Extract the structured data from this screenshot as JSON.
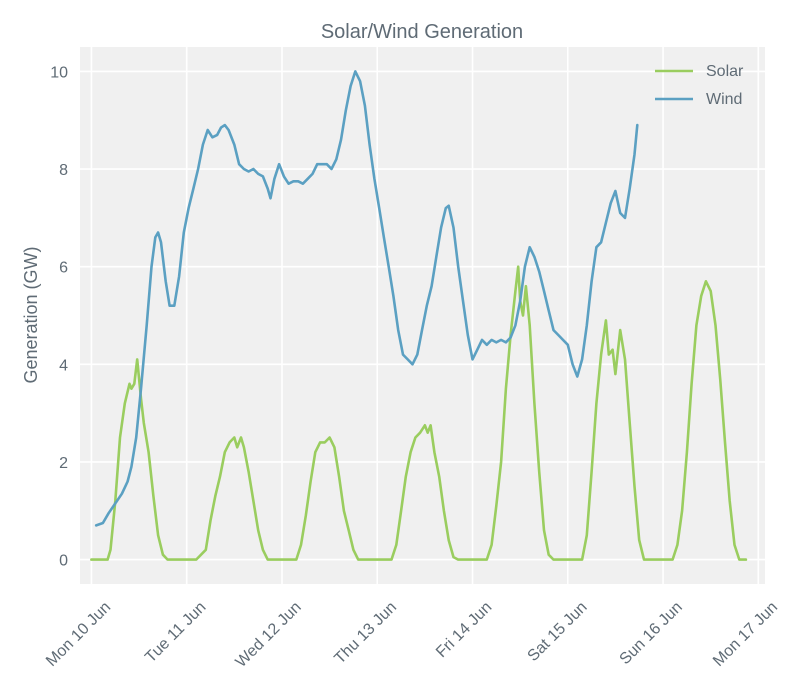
{
  "chart_data": {
    "type": "line",
    "title": "Solar/Wind Generation",
    "xlabel": "",
    "ylabel": "Generation (GW)",
    "ylim": [
      -0.5,
      10.5
    ],
    "yticks": [
      0,
      2,
      4,
      6,
      8,
      10
    ],
    "xlim": [
      -0.12,
      7.07
    ],
    "xticks": [
      {
        "label": "Mon 10 Jun",
        "x": 0
      },
      {
        "label": "Tue 11 Jun",
        "x": 1
      },
      {
        "label": "Wed 12 Jun",
        "x": 2
      },
      {
        "label": "Thu 13 Jun",
        "x": 3
      },
      {
        "label": "Fri 14 Jun",
        "x": 4
      },
      {
        "label": "Sat 15 Jun",
        "x": 5
      },
      {
        "label": "Sun 16 Jun",
        "x": 6
      },
      {
        "label": "Mon 17 Jun",
        "x": 7
      }
    ],
    "legend": "top-right",
    "grid": true,
    "series": [
      {
        "name": "Solar",
        "color": "#9acd5f",
        "points": [
          [
            0,
            0
          ],
          [
            0.08,
            0
          ],
          [
            0.17,
            0
          ],
          [
            0.2,
            0.2
          ],
          [
            0.25,
            1.2
          ],
          [
            0.3,
            2.5
          ],
          [
            0.35,
            3.2
          ],
          [
            0.4,
            3.6
          ],
          [
            0.42,
            3.5
          ],
          [
            0.45,
            3.6
          ],
          [
            0.48,
            4.1
          ],
          [
            0.52,
            3.3
          ],
          [
            0.55,
            2.8
          ],
          [
            0.6,
            2.2
          ],
          [
            0.65,
            1.3
          ],
          [
            0.7,
            0.5
          ],
          [
            0.75,
            0.1
          ],
          [
            0.8,
            0
          ],
          [
            0.9,
            0
          ],
          [
            1.0,
            0
          ],
          [
            1.1,
            0
          ],
          [
            1.2,
            0.2
          ],
          [
            1.25,
            0.8
          ],
          [
            1.3,
            1.3
          ],
          [
            1.35,
            1.7
          ],
          [
            1.4,
            2.2
          ],
          [
            1.45,
            2.4
          ],
          [
            1.5,
            2.5
          ],
          [
            1.53,
            2.3
          ],
          [
            1.57,
            2.5
          ],
          [
            1.6,
            2.3
          ],
          [
            1.65,
            1.8
          ],
          [
            1.7,
            1.2
          ],
          [
            1.75,
            0.6
          ],
          [
            1.8,
            0.2
          ],
          [
            1.85,
            0
          ],
          [
            2.0,
            0
          ],
          [
            2.15,
            0
          ],
          [
            2.2,
            0.3
          ],
          [
            2.25,
            0.9
          ],
          [
            2.3,
            1.6
          ],
          [
            2.35,
            2.2
          ],
          [
            2.4,
            2.4
          ],
          [
            2.45,
            2.4
          ],
          [
            2.5,
            2.5
          ],
          [
            2.55,
            2.3
          ],
          [
            2.6,
            1.7
          ],
          [
            2.65,
            1.0
          ],
          [
            2.7,
            0.6
          ],
          [
            2.75,
            0.2
          ],
          [
            2.8,
            0
          ],
          [
            3.0,
            0
          ],
          [
            3.15,
            0
          ],
          [
            3.2,
            0.3
          ],
          [
            3.25,
            1.0
          ],
          [
            3.3,
            1.7
          ],
          [
            3.35,
            2.2
          ],
          [
            3.4,
            2.5
          ],
          [
            3.45,
            2.6
          ],
          [
            3.5,
            2.75
          ],
          [
            3.53,
            2.6
          ],
          [
            3.56,
            2.75
          ],
          [
            3.6,
            2.2
          ],
          [
            3.65,
            1.7
          ],
          [
            3.7,
            1.0
          ],
          [
            3.75,
            0.4
          ],
          [
            3.8,
            0.05
          ],
          [
            3.85,
            0
          ],
          [
            4.0,
            0
          ],
          [
            4.15,
            0
          ],
          [
            4.2,
            0.3
          ],
          [
            4.25,
            1.1
          ],
          [
            4.3,
            2.0
          ],
          [
            4.35,
            3.5
          ],
          [
            4.4,
            4.6
          ],
          [
            4.45,
            5.5
          ],
          [
            4.48,
            6.0
          ],
          [
            4.5,
            5.3
          ],
          [
            4.53,
            5.0
          ],
          [
            4.56,
            5.6
          ],
          [
            4.6,
            4.8
          ],
          [
            4.65,
            3.2
          ],
          [
            4.7,
            1.8
          ],
          [
            4.75,
            0.6
          ],
          [
            4.8,
            0.1
          ],
          [
            4.85,
            0
          ],
          [
            5.0,
            0
          ],
          [
            5.15,
            0
          ],
          [
            5.2,
            0.5
          ],
          [
            5.25,
            1.8
          ],
          [
            5.3,
            3.2
          ],
          [
            5.35,
            4.2
          ],
          [
            5.4,
            4.9
          ],
          [
            5.43,
            4.2
          ],
          [
            5.47,
            4.3
          ],
          [
            5.5,
            3.8
          ],
          [
            5.55,
            4.7
          ],
          [
            5.6,
            4.1
          ],
          [
            5.65,
            2.8
          ],
          [
            5.7,
            1.5
          ],
          [
            5.75,
            0.4
          ],
          [
            5.8,
            0
          ],
          [
            6.0,
            0
          ],
          [
            6.1,
            0
          ],
          [
            6.15,
            0.3
          ],
          [
            6.2,
            1.0
          ],
          [
            6.25,
            2.2
          ],
          [
            6.3,
            3.6
          ],
          [
            6.35,
            4.8
          ],
          [
            6.4,
            5.4
          ],
          [
            6.45,
            5.7
          ],
          [
            6.5,
            5.5
          ],
          [
            6.55,
            4.8
          ],
          [
            6.6,
            3.7
          ],
          [
            6.65,
            2.4
          ],
          [
            6.7,
            1.2
          ],
          [
            6.75,
            0.3
          ],
          [
            6.8,
            0
          ],
          [
            6.87,
            0
          ]
        ]
      },
      {
        "name": "Wind",
        "color": "#5ba0c2",
        "points": [
          [
            0.05,
            0.7
          ],
          [
            0.12,
            0.75
          ],
          [
            0.18,
            0.95
          ],
          [
            0.25,
            1.15
          ],
          [
            0.32,
            1.35
          ],
          [
            0.38,
            1.6
          ],
          [
            0.42,
            1.9
          ],
          [
            0.47,
            2.5
          ],
          [
            0.52,
            3.5
          ],
          [
            0.58,
            4.8
          ],
          [
            0.63,
            6.0
          ],
          [
            0.67,
            6.6
          ],
          [
            0.7,
            6.7
          ],
          [
            0.73,
            6.5
          ],
          [
            0.78,
            5.7
          ],
          [
            0.82,
            5.2
          ],
          [
            0.87,
            5.2
          ],
          [
            0.92,
            5.8
          ],
          [
            0.97,
            6.7
          ],
          [
            1.02,
            7.2
          ],
          [
            1.07,
            7.6
          ],
          [
            1.12,
            8.0
          ],
          [
            1.17,
            8.5
          ],
          [
            1.22,
            8.8
          ],
          [
            1.27,
            8.65
          ],
          [
            1.32,
            8.7
          ],
          [
            1.36,
            8.85
          ],
          [
            1.4,
            8.9
          ],
          [
            1.44,
            8.8
          ],
          [
            1.5,
            8.5
          ],
          [
            1.55,
            8.1
          ],
          [
            1.6,
            8.0
          ],
          [
            1.65,
            7.95
          ],
          [
            1.7,
            8.0
          ],
          [
            1.75,
            7.9
          ],
          [
            1.8,
            7.85
          ],
          [
            1.85,
            7.6
          ],
          [
            1.88,
            7.4
          ],
          [
            1.92,
            7.8
          ],
          [
            1.97,
            8.1
          ],
          [
            2.02,
            7.85
          ],
          [
            2.07,
            7.7
          ],
          [
            2.12,
            7.75
          ],
          [
            2.17,
            7.75
          ],
          [
            2.22,
            7.7
          ],
          [
            2.27,
            7.8
          ],
          [
            2.32,
            7.9
          ],
          [
            2.37,
            8.1
          ],
          [
            2.42,
            8.1
          ],
          [
            2.47,
            8.1
          ],
          [
            2.52,
            8.0
          ],
          [
            2.57,
            8.2
          ],
          [
            2.62,
            8.6
          ],
          [
            2.67,
            9.2
          ],
          [
            2.72,
            9.7
          ],
          [
            2.77,
            10.0
          ],
          [
            2.82,
            9.8
          ],
          [
            2.87,
            9.3
          ],
          [
            2.92,
            8.5
          ],
          [
            2.97,
            7.8
          ],
          [
            3.02,
            7.2
          ],
          [
            3.07,
            6.6
          ],
          [
            3.12,
            6.0
          ],
          [
            3.17,
            5.4
          ],
          [
            3.22,
            4.7
          ],
          [
            3.27,
            4.2
          ],
          [
            3.32,
            4.1
          ],
          [
            3.37,
            4.0
          ],
          [
            3.42,
            4.2
          ],
          [
            3.47,
            4.7
          ],
          [
            3.52,
            5.2
          ],
          [
            3.57,
            5.6
          ],
          [
            3.62,
            6.2
          ],
          [
            3.67,
            6.8
          ],
          [
            3.72,
            7.2
          ],
          [
            3.75,
            7.25
          ],
          [
            3.8,
            6.8
          ],
          [
            3.85,
            6.0
          ],
          [
            3.9,
            5.3
          ],
          [
            3.95,
            4.6
          ],
          [
            4.0,
            4.1
          ],
          [
            4.05,
            4.3
          ],
          [
            4.1,
            4.5
          ],
          [
            4.15,
            4.4
          ],
          [
            4.2,
            4.5
          ],
          [
            4.25,
            4.45
          ],
          [
            4.3,
            4.5
          ],
          [
            4.35,
            4.45
          ],
          [
            4.4,
            4.55
          ],
          [
            4.45,
            4.8
          ],
          [
            4.5,
            5.3
          ],
          [
            4.55,
            6.0
          ],
          [
            4.6,
            6.4
          ],
          [
            4.65,
            6.2
          ],
          [
            4.7,
            5.9
          ],
          [
            4.75,
            5.5
          ],
          [
            4.8,
            5.1
          ],
          [
            4.85,
            4.7
          ],
          [
            4.9,
            4.6
          ],
          [
            4.95,
            4.5
          ],
          [
            5.0,
            4.4
          ],
          [
            5.05,
            4.0
          ],
          [
            5.1,
            3.75
          ],
          [
            5.15,
            4.1
          ],
          [
            5.2,
            4.8
          ],
          [
            5.25,
            5.7
          ],
          [
            5.3,
            6.4
          ],
          [
            5.35,
            6.5
          ],
          [
            5.4,
            6.9
          ],
          [
            5.45,
            7.3
          ],
          [
            5.5,
            7.55
          ],
          [
            5.55,
            7.1
          ],
          [
            5.6,
            7.0
          ],
          [
            5.65,
            7.6
          ],
          [
            5.7,
            8.3
          ],
          [
            5.73,
            8.9
          ]
        ]
      }
    ]
  }
}
